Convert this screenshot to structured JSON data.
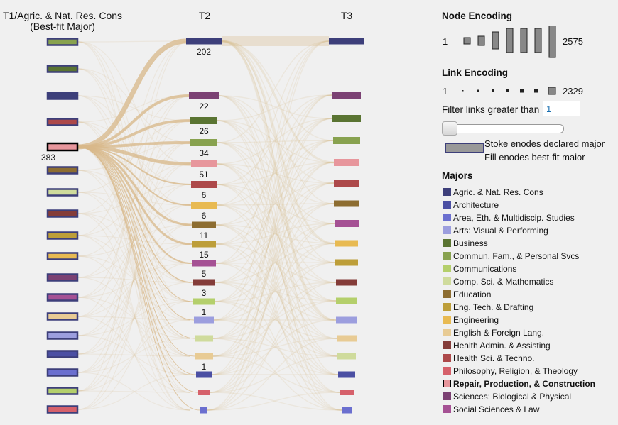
{
  "columns": {
    "t1_title_line1": "T1/Agric. & Nat. Res. Cons",
    "t1_title_line2": "(Best-fit Major)",
    "t2_title": "T2",
    "t3_title": "T3"
  },
  "selected_node": {
    "column": "T1",
    "major": "Repair, Production, & Construction",
    "count": "383"
  },
  "t2_counts": [
    "202",
    "22",
    "26",
    "34",
    "51",
    "6",
    "6",
    "11",
    "15",
    "5",
    "3",
    "1",
    "",
    "",
    "1",
    "",
    ""
  ],
  "node_encoding": {
    "title": "Node Encoding",
    "min": "1",
    "max": "2575"
  },
  "link_encoding": {
    "title": "Link Encoding",
    "min": "1",
    "max": "2329"
  },
  "filter": {
    "label": "Filter links greater than",
    "value": "1"
  },
  "stroke_fill_legend": {
    "line1": "Stoke enodes declared major",
    "line2": "Fill enodes best-fit maior"
  },
  "majors": {
    "title": "Majors",
    "items": [
      {
        "label": "Agric. & Nat. Res. Cons",
        "color": "#3d3f7a"
      },
      {
        "label": "Architecture",
        "color": "#4b4fa3"
      },
      {
        "label": "Area, Eth. & Multidiscip. Studies",
        "color": "#6b6fcf"
      },
      {
        "label": "Arts: Visual & Performing",
        "color": "#9c9ede"
      },
      {
        "label": "Business",
        "color": "#5a7432"
      },
      {
        "label": "Commun, Fam., & Personal Svcs",
        "color": "#88a24f"
      },
      {
        "label": "Communications",
        "color": "#b4cf6b"
      },
      {
        "label": "Comp. Sci. & Mathematics",
        "color": "#cfdb9c"
      },
      {
        "label": "Education",
        "color": "#8d6d31"
      },
      {
        "label": "Eng. Tech. & Drafting",
        "color": "#bd9e39"
      },
      {
        "label": "Engineering",
        "color": "#e8ba52"
      },
      {
        "label": "English & Foreign Lang.",
        "color": "#e8cb94"
      },
      {
        "label": "Health Admin. & Assisting",
        "color": "#843c39"
      },
      {
        "label": "Health Sci. & Techno.",
        "color": "#ad494a"
      },
      {
        "label": "Philosophy, Religion, & Theology",
        "color": "#d6616b"
      },
      {
        "label": "Repair, Production, & Construction",
        "color": "#e7969c",
        "selected": true
      },
      {
        "label": "Sciences: Biological & Physical",
        "color": "#7b4173"
      },
      {
        "label": "Social Sciences & Law",
        "color": "#a55194"
      }
    ]
  }
}
